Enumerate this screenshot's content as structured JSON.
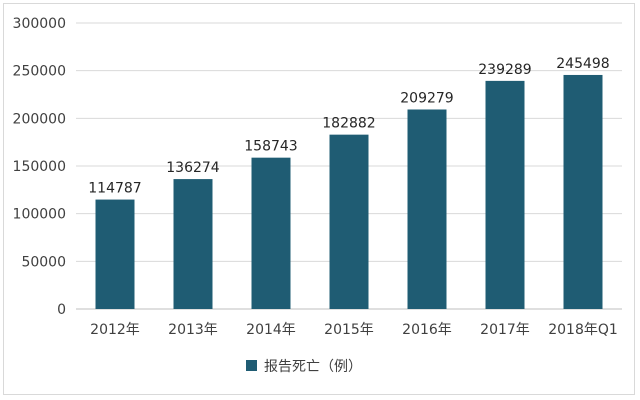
{
  "chart_data": {
    "type": "bar",
    "categories": [
      "2012年",
      "2013年",
      "2014年",
      "2015年",
      "2016年",
      "2017年",
      "2018年Q1"
    ],
    "series": [
      {
        "name": "报告死亡（例）",
        "values": [
          114787,
          136274,
          158743,
          182882,
          209279,
          239289,
          245498
        ],
        "color": "#1f5c73"
      }
    ],
    "ylim": [
      0,
      300000
    ],
    "yticks": [
      0,
      50000,
      100000,
      150000,
      200000,
      250000,
      300000
    ],
    "grid": true,
    "legend": "bottom",
    "data_labels": true
  }
}
